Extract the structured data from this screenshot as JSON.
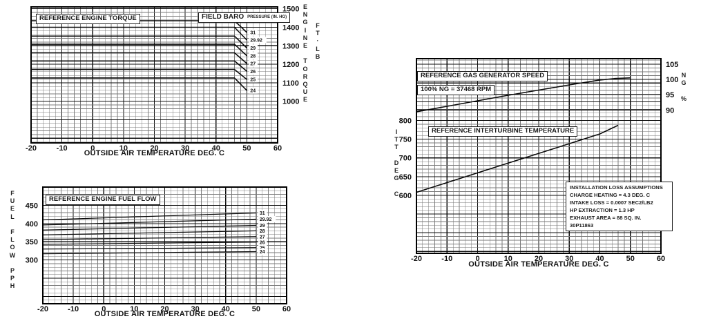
{
  "page": {
    "background": "#ffffff",
    "ink": "#111111",
    "grid_minor": "#7a7a7a",
    "grid_major": "#000000"
  },
  "chart_data": [
    {
      "id": "reference-engine-torque",
      "type": "line",
      "title": "REFERENCE ENGINE TORQUE",
      "legend_title": "FIELD BARO",
      "legend_subtitle": "PRESSURE (IN. HG)",
      "xlabel": "OUTSIDE AIR TEMPERATURE DEG. C",
      "ylabel": "ENGINE TORQUE",
      "ylabel_units": "FT·LB",
      "xlim": [
        -20,
        60
      ],
      "xticks": [
        -20,
        -10,
        0,
        10,
        20,
        30,
        40,
        50,
        60
      ],
      "x_minor": 2,
      "ylim": [
        775,
        1510
      ],
      "yticks": [
        1000,
        1100,
        1200,
        1300,
        1400,
        1500
      ],
      "yticks_side": "right",
      "y_minor": 20,
      "y_major": 100,
      "grid": true,
      "series": [
        {
          "name": "31",
          "points": [
            [
              -20,
              1435
            ],
            [
              46,
              1435
            ],
            [
              50,
              1372
            ]
          ]
        },
        {
          "name": "29.92",
          "points": [
            [
              -20,
              1400
            ],
            [
              46,
              1400
            ],
            [
              50,
              1331
            ]
          ]
        },
        {
          "name": "29",
          "points": [
            [
              -20,
              1352
            ],
            [
              46,
              1352
            ],
            [
              50,
              1288
            ]
          ]
        },
        {
          "name": "28",
          "points": [
            [
              -20,
              1308
            ],
            [
              46,
              1308
            ],
            [
              50,
              1246
            ]
          ]
        },
        {
          "name": "27",
          "points": [
            [
              -20,
              1262
            ],
            [
              46,
              1262
            ],
            [
              50,
              1204
            ]
          ]
        },
        {
          "name": "26",
          "points": [
            [
              -20,
              1218
            ],
            [
              46,
              1218
            ],
            [
              50,
              1162
            ]
          ]
        },
        {
          "name": "25",
          "points": [
            [
              -20,
              1172
            ],
            [
              46,
              1172
            ],
            [
              50,
              1118
            ]
          ]
        },
        {
          "name": "24",
          "points": [
            [
              -20,
              1126
            ],
            [
              46,
              1126
            ],
            [
              50,
              1058
            ]
          ]
        }
      ]
    },
    {
      "id": "reference-engine-fuel-flow",
      "type": "line",
      "title": "REFERENCE ENGINE FUEL FLOW",
      "xlabel": "OUTSIDE AIR TEMPERATURE DEG. C",
      "ylabel": "FUEL FLOW PPH",
      "xlim": [
        -20,
        60
      ],
      "xticks": [
        -20,
        -10,
        0,
        10,
        20,
        30,
        40,
        50,
        60
      ],
      "x_minor": 2,
      "ylim": [
        180,
        500
      ],
      "yticks": [
        300,
        350,
        400,
        450
      ],
      "yticks_side": "left",
      "y_minor": 10,
      "y_major": 50,
      "grid": true,
      "series": [
        {
          "name": "31",
          "points": [
            [
              -20,
              410
            ],
            [
              50,
              429
            ]
          ]
        },
        {
          "name": "29.92",
          "points": [
            [
              -20,
              396
            ],
            [
              50,
              412
            ]
          ]
        },
        {
          "name": "29",
          "points": [
            [
              -20,
              382
            ],
            [
              50,
              395
            ]
          ]
        },
        {
          "name": "28",
          "points": [
            [
              -20,
              369
            ],
            [
              50,
              380
            ]
          ]
        },
        {
          "name": "27",
          "points": [
            [
              -20,
              356
            ],
            [
              50,
              364
            ]
          ]
        },
        {
          "name": "26",
          "points": [
            [
              -20,
              343
            ],
            [
              50,
              349
            ]
          ]
        },
        {
          "name": "25",
          "points": [
            [
              -20,
              330
            ],
            [
              50,
              334
            ]
          ]
        },
        {
          "name": "24",
          "points": [
            [
              -20,
              317
            ],
            [
              50,
              323
            ]
          ]
        }
      ]
    },
    {
      "id": "reference-ng-and-itt",
      "type": "line",
      "titles": {
        "ng": "REFERENCE GAS GENERATOR SPEED",
        "ng_note": "100% NG = 37468 RPM",
        "itt": "REFERENCE INTERTURBINE TEMPERATURE"
      },
      "xlabel": "OUTSIDE AIR TEMPERATURE DEG. C",
      "xlim": [
        -20,
        60
      ],
      "xticks": [
        -20,
        -10,
        0,
        10,
        20,
        30,
        40,
        50,
        60
      ],
      "x_minor": 2,
      "left_axis": {
        "label": "ITT DEG C",
        "ylim": [
          445,
          965
        ],
        "yticks": [
          600,
          650,
          700,
          750,
          800
        ],
        "y_minor": 10,
        "y_major": 50
      },
      "right_axis": {
        "label": "NG %",
        "ylim": [
          43,
          106.8
        ],
        "yticks": [
          90,
          95,
          100,
          105
        ]
      },
      "grid": true,
      "series": [
        {
          "name": "NG",
          "axis": "right",
          "points": [
            [
              -20,
              89.4
            ],
            [
              -10,
              91.2
            ],
            [
              0,
              93.0
            ],
            [
              10,
              94.8
            ],
            [
              20,
              96.5
            ],
            [
              30,
              98.2
            ],
            [
              40,
              99.8
            ],
            [
              45,
              100.3
            ],
            [
              50,
              100.5
            ]
          ]
        },
        {
          "name": "ITT",
          "axis": "left",
          "points": [
            [
              -20,
              608
            ],
            [
              -10,
              634
            ],
            [
              0,
              660
            ],
            [
              10,
              686
            ],
            [
              20,
              712
            ],
            [
              30,
              738
            ],
            [
              40,
              764
            ],
            [
              46,
              787
            ]
          ]
        }
      ],
      "note_box": {
        "lines": [
          "INSTALLATION LOSS ASSUMPTIONS",
          "CHARGE HEATING = 4.3 DEG. C",
          "INTAKE LOSS = 0.0007 SEC2/LB2",
          "HP EXTRACTION = 1.3 HP",
          "EXHAUST AREA = 88 SQ. IN.",
          "30P11863"
        ]
      }
    }
  ]
}
